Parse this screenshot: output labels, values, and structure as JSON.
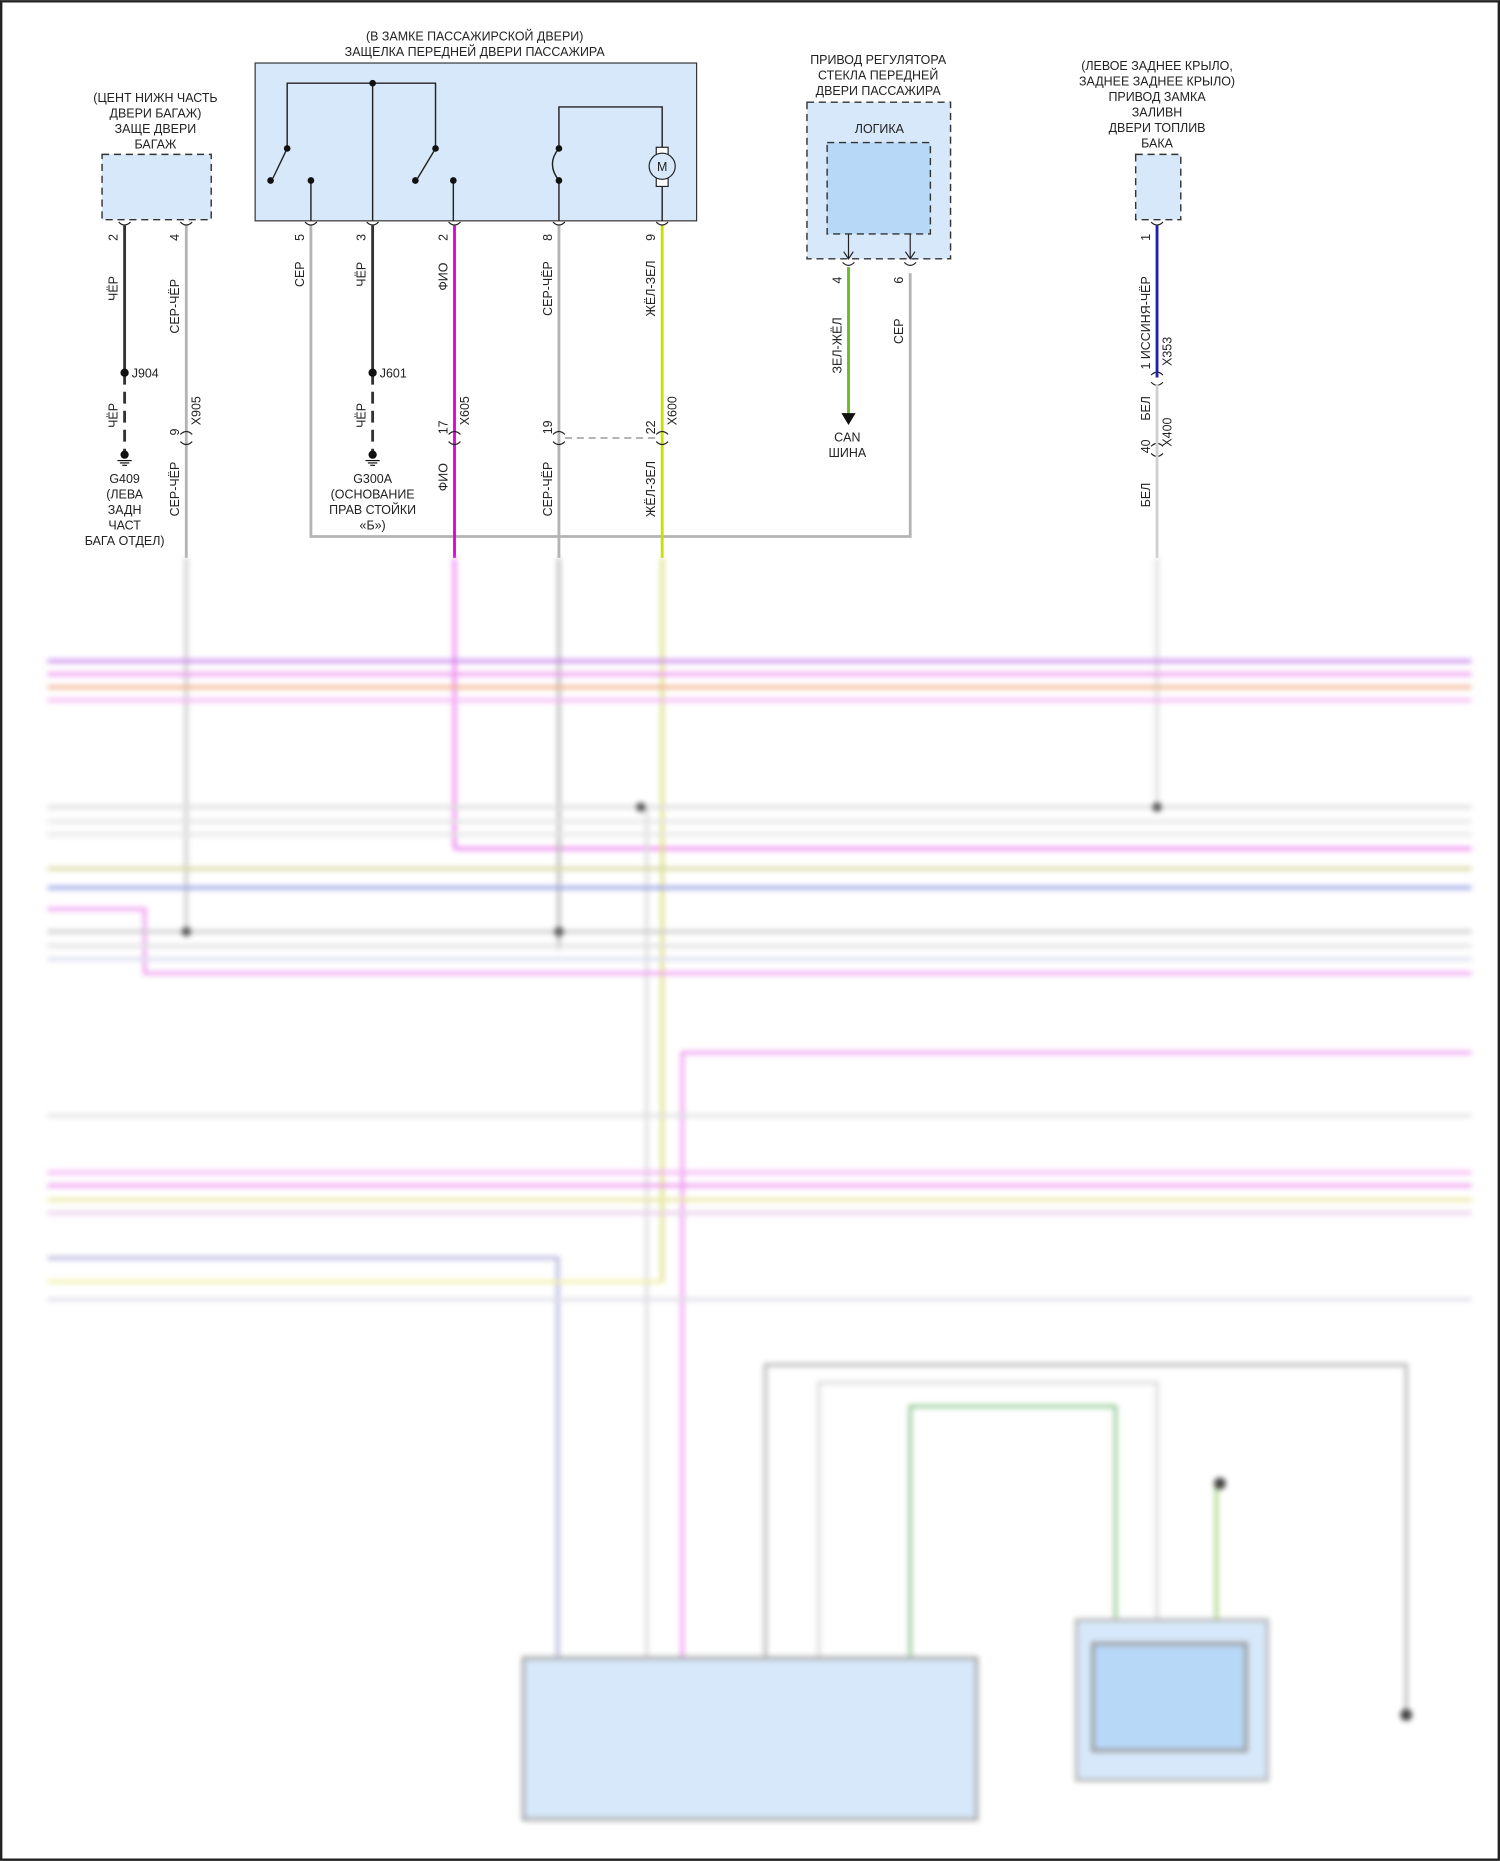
{
  "components": {
    "trunk_latch": {
      "title_lines": [
        "(ЦЕНТ НИЖН ЧАСТЬ",
        "ДВЕРИ БАГАЖ)",
        "ЗАЩЕ ДВЕРИ",
        "БАГАЖ"
      ]
    },
    "passenger_latch": {
      "title_lines": [
        "(В ЗАМКЕ ПАССАЖИРСКОЙ ДВЕРИ)",
        "ЗАЩЕЛКА ПЕРЕДНЕЙ ДВЕРИ ПАССАЖИРА"
      ],
      "motor_symbol": "M"
    },
    "window_regulator": {
      "title_lines": [
        "ПРИВОД РЕГУЛЯТОРА",
        "СТЕКЛА ПЕРЕДНЕЙ",
        "ДВЕРИ ПАССАЖИРА"
      ],
      "logic_label": "ЛОГИКА"
    },
    "fuel_door": {
      "title_lines": [
        "(ЛЕВОЕ ЗАДНЕЕ КРЫЛО,",
        "ЗАДНЕЕ ЗАДНЕЕ КРЫЛО)",
        "ПРИВОД ЗАМКА",
        "ЗАЛИВН",
        "ДВЕРИ ТОПЛИВ",
        "БАКА"
      ]
    }
  },
  "wires": {
    "trunk_pin2": {
      "pin": "2",
      "color": "ЧЁР",
      "splice": "J904",
      "color2": "ЧЁР",
      "ground_lines": [
        "G409",
        "(ЛЕВА",
        "ЗАДН",
        "ЧАСТ",
        "БАГА ОТДЕЛ)"
      ]
    },
    "trunk_pin4": {
      "pin": "4",
      "color": "СЕР-ЧЁР",
      "conn_pin": "9",
      "connector": "X905",
      "color2": "СЕР-ЧЁР"
    },
    "latch_pin5": {
      "pin": "5",
      "color": "СЕР"
    },
    "latch_pin3": {
      "pin": "3",
      "color": "ЧЁР",
      "splice": "J601",
      "color2": "ЧЁР",
      "ground_lines": [
        "G300A",
        "(ОСНОВАНИЕ",
        "ПРАВ СТОЙКИ",
        "«Б»)"
      ]
    },
    "latch_pin2": {
      "pin": "2",
      "color": "ФИО",
      "conn_pin": "17",
      "connector": "X605",
      "color2": "ФИО"
    },
    "latch_pin8": {
      "pin": "8",
      "color": "СЕР-ЧЁР",
      "conn_pin": "19",
      "color2": "СЕР-ЧЁР"
    },
    "latch_pin9": {
      "pin": "9",
      "color": "ЖЁЛ-ЗЕЛ",
      "conn_pin": "22",
      "connector": "X600",
      "color2": "ЖЁЛ-ЗЕЛ"
    },
    "regulator_pin4": {
      "pin": "4",
      "color": "ЗЕЛ-ЖЁЛ",
      "destination_lines": [
        "CAN",
        "ШИНА"
      ]
    },
    "regulator_pin6": {
      "pin": "6",
      "color": "СЕР"
    },
    "fuel_pin1": {
      "pin": "1",
      "color": "1 ИССИНЯ-ЧЁР",
      "connector": "X353",
      "color2": "БЕЛ",
      "conn2_pin": "40",
      "connector2": "X400",
      "color3": "БЕЛ"
    }
  },
  "wire_colors": {
    "black": "#333333",
    "grey": "#b4b4b4",
    "violet": "#e000e0",
    "yellow_green": "#c8e000",
    "green": "#66bb22",
    "blue": "#2020b0",
    "component_fill": "#d6e8fa"
  }
}
